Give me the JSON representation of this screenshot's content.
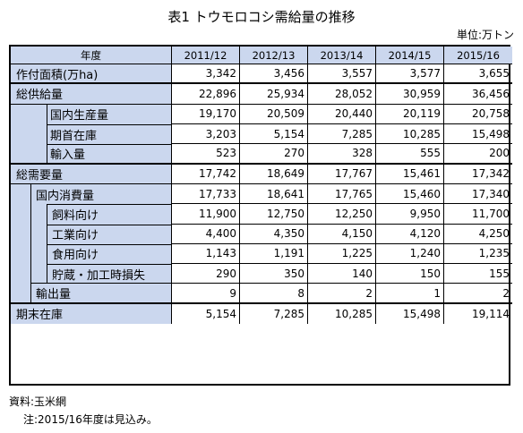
{
  "title": "表1 トウモロコシ需給量の推移",
  "unit": "単位:万トン",
  "header": {
    "label": "年度",
    "years": [
      "2011/12",
      "2012/13",
      "2013/14",
      "2014/15",
      "2015/16"
    ]
  },
  "rows": [
    {
      "label": "作付面積(万ha)",
      "values": [
        "3,342",
        "3,456",
        "3,557",
        "3,577",
        "3,655"
      ]
    },
    {
      "label": "総供給量",
      "values": [
        "22,896",
        "25,934",
        "28,052",
        "30,959",
        "36,456"
      ]
    },
    {
      "label": "国内生産量",
      "values": [
        "19,170",
        "20,509",
        "20,440",
        "20,119",
        "20,758"
      ]
    },
    {
      "label": "期首在庫",
      "values": [
        "3,203",
        "5,154",
        "7,285",
        "10,285",
        "15,498"
      ]
    },
    {
      "label": "輸入量",
      "values": [
        "523",
        "270",
        "328",
        "555",
        "200"
      ]
    },
    {
      "label": "総需要量",
      "values": [
        "17,742",
        "18,649",
        "17,767",
        "15,461",
        "17,342"
      ]
    },
    {
      "label": "国内消費量",
      "values": [
        "17,733",
        "18,641",
        "17,765",
        "15,460",
        "17,340"
      ]
    },
    {
      "label": "飼料向け",
      "values": [
        "11,900",
        "12,750",
        "12,250",
        "9,950",
        "11,700"
      ]
    },
    {
      "label": "工業向け",
      "values": [
        "4,400",
        "4,350",
        "4,150",
        "4,120",
        "4,250"
      ]
    },
    {
      "label": "食用向け",
      "values": [
        "1,143",
        "1,191",
        "1,225",
        "1,240",
        "1,235"
      ]
    },
    {
      "label": "貯蔵・加工時損失",
      "values": [
        "290",
        "350",
        "140",
        "150",
        "155"
      ]
    },
    {
      "label": "輸出量",
      "values": [
        "9",
        "8",
        "2",
        "1",
        "2"
      ]
    },
    {
      "label": "期末在庫",
      "values": [
        "5,154",
        "7,285",
        "10,285",
        "15,498",
        "19,114"
      ]
    }
  ],
  "source": "資料:玉米網",
  "note": "注:2015/16年度は見込み。"
}
